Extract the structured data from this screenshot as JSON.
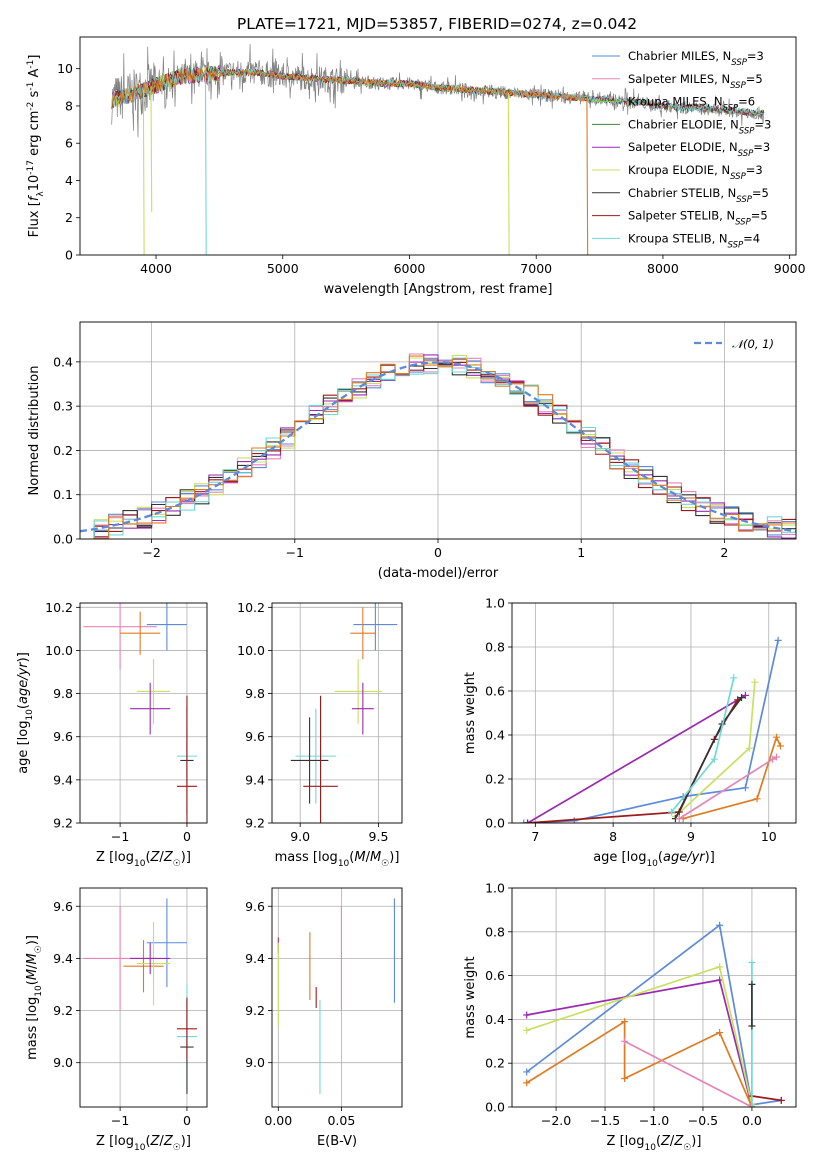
{
  "title": "PLATE=1721, MJD=53857, FIBERID=0274, z=0.042",
  "colors": {
    "chabrier_miles": "#5b8bd9",
    "salpeter_miles": "#e784b6",
    "kroupa_miles": "#88cc44",
    "chabrier_elodie": "#3a8a3a",
    "salpeter_elodie": "#9a2bb0",
    "kroupa_elodie": "#c8e060",
    "chabrier_stelib": "#333333",
    "salpeter_stelib": "#9e1a1a",
    "kroupa_stelib": "#70d8d8",
    "orange": "#e07b22",
    "data": "#808080",
    "normal": "#5b8bd9"
  },
  "chart_data": [
    {
      "id": "spectrum",
      "type": "line",
      "xlabel": "wavelength [Angstrom, rest frame]",
      "ylabel": "Flux [f_λ10^{-17} erg cm^{-2} s^{-1} A^{-1}]",
      "xlim": [
        3400,
        9050
      ],
      "ylim": [
        0,
        11.7
      ],
      "xticks": [
        4000,
        5000,
        6000,
        7000,
        8000,
        9000
      ],
      "yticks": [
        0,
        2,
        4,
        6,
        8,
        10
      ],
      "x_tick_labels": [
        "4000",
        "5000",
        "6000",
        "7000",
        "8000",
        "9000"
      ],
      "y_tick_labels": [
        "0",
        "2",
        "4",
        "6",
        "8",
        "10"
      ],
      "legend": [
        {
          "base": "Chabrier MILES, N",
          "sub": "SSP",
          "tail": "=3",
          "color_key": "chabrier_miles"
        },
        {
          "base": "Salpeter MILES, N",
          "sub": "SSP",
          "tail": "=5",
          "color_key": "salpeter_miles"
        },
        {
          "base": "Kroupa MILES, N",
          "sub": "SSP",
          "tail": "=6",
          "color_key": "kroupa_miles"
        },
        {
          "base": "Chabrier ELODIE, N",
          "sub": "SSP",
          "tail": "=3",
          "color_key": "chabrier_elodie"
        },
        {
          "base": "Salpeter ELODIE, N",
          "sub": "SSP",
          "tail": "=3",
          "color_key": "salpeter_elodie"
        },
        {
          "base": "Kroupa ELODIE, N",
          "sub": "SSP",
          "tail": "=3",
          "color_key": "kroupa_elodie"
        },
        {
          "base": "Chabrier STELIB, N",
          "sub": "SSP",
          "tail": "=5",
          "color_key": "chabrier_stelib"
        },
        {
          "base": "Salpeter STELIB, N",
          "sub": "SSP",
          "tail": "=5",
          "color_key": "salpeter_stelib"
        },
        {
          "base": "Kroupa STELIB, N",
          "sub": "SSP",
          "tail": "=4",
          "color_key": "kroupa_stelib"
        }
      ],
      "continuum": {
        "x": [
          3650,
          3800,
          4000,
          4200,
          4400,
          4600,
          4800,
          5000,
          5200,
          5400,
          5600,
          5800,
          6000,
          6200,
          6400,
          6600,
          6800,
          7000,
          7200,
          7400,
          7600,
          7800,
          8000,
          8200,
          8400,
          8600,
          8800
        ],
        "y": [
          8.3,
          8.6,
          9.1,
          9.6,
          9.7,
          9.8,
          9.8,
          9.6,
          9.5,
          9.4,
          9.3,
          9.2,
          9.2,
          9.0,
          8.9,
          8.8,
          8.7,
          8.6,
          8.5,
          8.4,
          8.3,
          8.2,
          8.0,
          7.9,
          7.8,
          7.7,
          7.6
        ]
      },
      "model_dips": [
        {
          "x": 3900,
          "y": 0,
          "color_key": "kroupa_elodie"
        },
        {
          "x": 3960,
          "y": 2.3,
          "color_key": "kroupa_elodie"
        },
        {
          "x": 4390,
          "y": 0,
          "color_key": "kroupa_stelib"
        },
        {
          "x": 6780,
          "y": 0,
          "color_key": "kroupa_elodie"
        },
        {
          "x": 7400,
          "y": 0,
          "color_key": "orange"
        }
      ]
    },
    {
      "id": "residual_histogram",
      "type": "histogram",
      "xlabel": "(data-model)/error",
      "ylabel": "Normed distribution",
      "xlim": [
        -2.5,
        2.5
      ],
      "ylim": [
        0,
        0.49
      ],
      "xticks": [
        -2,
        -1,
        0,
        1,
        2
      ],
      "yticks": [
        0,
        0.1,
        0.2,
        0.3,
        0.4
      ],
      "x_tick_labels": [
        "−2",
        "−1",
        "0",
        "1",
        "2"
      ],
      "y_tick_labels": [
        "0.0",
        "0.1",
        "0.2",
        "0.3",
        "0.4"
      ],
      "legend_label": "𝒩(0, 1)",
      "bin_width": 0.1,
      "series_color_keys": [
        "chabrier_miles",
        "salpeter_miles",
        "kroupa_elodie",
        "salpeter_elodie",
        "chabrier_stelib",
        "salpeter_stelib",
        "kroupa_stelib",
        "orange"
      ]
    },
    {
      "id": "age_vs_Z",
      "type": "errorbar",
      "xlabel": "Z [log10(Z/Z☉)]",
      "ylabel": "age [log10(age/yr)]",
      "xlim": [
        -1.6,
        0.3
      ],
      "ylim": [
        9.2,
        10.22
      ],
      "xticks": [
        -1,
        0
      ],
      "yticks": [
        9.2,
        9.4,
        9.6,
        9.8,
        10.0,
        10.2
      ],
      "x_tick_labels": [
        "−1",
        "0"
      ],
      "y_tick_labels": [
        "9.2",
        "9.4",
        "9.6",
        "9.8",
        "10.0",
        "10.2"
      ],
      "points": [
        {
          "x": -0.3,
          "xerr": 0.3,
          "y": 10.12,
          "yerr": 0.12,
          "color_key": "chabrier_miles"
        },
        {
          "x": -1.0,
          "xerr": 0.55,
          "y": 10.11,
          "yerr": 0.2,
          "color_key": "salpeter_miles"
        },
        {
          "x": -0.7,
          "xerr": 0.3,
          "y": 10.08,
          "yerr": 0.1,
          "color_key": "orange"
        },
        {
          "x": -0.5,
          "xerr": 0.25,
          "y": 9.81,
          "yerr": 0.15,
          "color_key": "kroupa_elodie"
        },
        {
          "x": -0.55,
          "xerr": 0.3,
          "y": 9.73,
          "yerr": 0.12,
          "color_key": "salpeter_elodie"
        },
        {
          "x": 0.0,
          "xerr": 0.15,
          "y": 9.51,
          "yerr": 0.12,
          "color_key": "kroupa_stelib"
        },
        {
          "x": 0.0,
          "xerr": 0.1,
          "y": 9.49,
          "yerr": 0.25,
          "color_key": "chabrier_stelib"
        },
        {
          "x": 0.0,
          "xerr": 0.15,
          "y": 9.37,
          "yerr": 0.42,
          "color_key": "salpeter_stelib"
        }
      ]
    },
    {
      "id": "age_vs_mass",
      "type": "errorbar",
      "xlabel": "mass [log10(M/M☉)]",
      "ylabel": "",
      "xlim": [
        8.82,
        9.65
      ],
      "ylim": [
        9.2,
        10.22
      ],
      "xticks": [
        9.0,
        9.5
      ],
      "yticks": [
        9.2,
        9.4,
        9.6,
        9.8,
        10.0,
        10.2
      ],
      "x_tick_labels": [
        "9.0",
        "9.5"
      ],
      "y_tick_labels": [
        "9.2",
        "9.4",
        "9.6",
        "9.8",
        "10.0",
        "10.2"
      ],
      "points": [
        {
          "x": 9.48,
          "xerr": 0.14,
          "y": 10.12,
          "yerr": 0.12,
          "color_key": "chabrier_miles"
        },
        {
          "x": 9.4,
          "xerr": 0.08,
          "y": 10.08,
          "yerr": 0.12,
          "color_key": "orange"
        },
        {
          "x": 9.37,
          "xerr": 0.15,
          "y": 9.81,
          "yerr": 0.15,
          "color_key": "kroupa_elodie"
        },
        {
          "x": 9.4,
          "xerr": 0.07,
          "y": 9.73,
          "yerr": 0.12,
          "color_key": "salpeter_elodie"
        },
        {
          "x": 9.1,
          "xerr": 0.13,
          "y": 9.51,
          "yerr": 0.22,
          "color_key": "kroupa_stelib"
        },
        {
          "x": 9.06,
          "xerr": 0.12,
          "y": 9.49,
          "yerr": 0.2,
          "color_key": "chabrier_stelib"
        },
        {
          "x": 9.13,
          "xerr": 0.11,
          "y": 9.37,
          "yerr": 0.42,
          "color_key": "salpeter_stelib"
        }
      ]
    },
    {
      "id": "weight_vs_age",
      "type": "line",
      "xlabel": "age [log10(age/yr)]",
      "ylabel": "mass weight",
      "xlim": [
        6.7,
        10.35
      ],
      "ylim": [
        0,
        1.0
      ],
      "xticks": [
        7,
        8,
        9,
        10
      ],
      "yticks": [
        0,
        0.2,
        0.4,
        0.6,
        0.8,
        1.0
      ],
      "x_tick_labels": [
        "7",
        "8",
        "9",
        "10"
      ],
      "y_tick_labels": [
        "0.0",
        "0.2",
        "0.4",
        "0.6",
        "0.8",
        "1.0"
      ],
      "series": [
        {
          "color_key": "chabrier_miles",
          "x": [
            6.85,
            7.5,
            8.9,
            9.7,
            10.12
          ],
          "y": [
            0.0,
            0.01,
            0.12,
            0.16,
            0.83
          ]
        },
        {
          "color_key": "salpeter_elodie",
          "x": [
            6.9,
            9.7
          ],
          "y": [
            0.0,
            0.58
          ]
        },
        {
          "color_key": "kroupa_elodie",
          "x": [
            8.8,
            9.75,
            9.82
          ],
          "y": [
            0.03,
            0.34,
            0.64
          ]
        },
        {
          "color_key": "salpeter_stelib",
          "x": [
            6.9,
            8.85,
            9.3,
            9.6
          ],
          "y": [
            0.0,
            0.05,
            0.38,
            0.56
          ]
        },
        {
          "color_key": "chabrier_stelib",
          "x": [
            8.8,
            9.4,
            9.65
          ],
          "y": [
            0.02,
            0.45,
            0.57
          ]
        },
        {
          "color_key": "kroupa_stelib",
          "x": [
            8.75,
            9.3,
            9.55
          ],
          "y": [
            0.05,
            0.29,
            0.66
          ]
        },
        {
          "color_key": "orange",
          "x": [
            8.9,
            9.85,
            10.1,
            10.15
          ],
          "y": [
            0.02,
            0.11,
            0.39,
            0.35
          ]
        },
        {
          "color_key": "salpeter_miles",
          "x": [
            8.85,
            10.05,
            10.1
          ],
          "y": [
            0.02,
            0.29,
            0.3
          ]
        }
      ]
    },
    {
      "id": "mass_vs_Z",
      "type": "errorbar",
      "xlabel": "Z [log10(Z/Z☉)]",
      "ylabel": "mass [log10(M/M☉)]",
      "xlim": [
        -1.6,
        0.3
      ],
      "ylim": [
        8.83,
        9.67
      ],
      "xticks": [
        -1,
        0
      ],
      "yticks": [
        9.0,
        9.2,
        9.4,
        9.6
      ],
      "x_tick_labels": [
        "−1",
        "0"
      ],
      "y_tick_labels": [
        "9.0",
        "9.2",
        "9.4",
        "9.6"
      ],
      "points": [
        {
          "x": -0.3,
          "xerr": 0.3,
          "y": 9.46,
          "yerr": 0.17,
          "color_key": "chabrier_miles"
        },
        {
          "x": -1.0,
          "xerr": 0.55,
          "y": 9.4,
          "yerr": 0.2,
          "color_key": "salpeter_miles"
        },
        {
          "x": -0.65,
          "xerr": 0.3,
          "y": 9.37,
          "yerr": 0.1,
          "color_key": "orange"
        },
        {
          "x": -0.5,
          "xerr": 0.25,
          "y": 9.38,
          "yerr": 0.16,
          "color_key": "kroupa_elodie"
        },
        {
          "x": -0.55,
          "xerr": 0.3,
          "y": 9.4,
          "yerr": 0.06,
          "color_key": "salpeter_elodie"
        },
        {
          "x": 0.0,
          "xerr": 0.15,
          "y": 9.1,
          "yerr": 0.2,
          "color_key": "kroupa_stelib"
        },
        {
          "x": 0.0,
          "xerr": 0.1,
          "y": 9.06,
          "yerr": 0.18,
          "color_key": "chabrier_stelib"
        },
        {
          "x": 0.0,
          "xerr": 0.15,
          "y": 9.13,
          "yerr": 0.12,
          "color_key": "salpeter_stelib"
        }
      ]
    },
    {
      "id": "mass_vs_EBV",
      "type": "errorbar",
      "xlabel": "E(B-V)",
      "ylabel": "",
      "xlim": [
        -0.005,
        0.098
      ],
      "ylim": [
        8.83,
        9.67
      ],
      "xticks": [
        0.0,
        0.05
      ],
      "yticks": [
        9.0,
        9.2,
        9.4,
        9.6
      ],
      "x_tick_labels": [
        "0.00",
        "0.05"
      ],
      "y_tick_labels": [
        "9.0",
        "9.2",
        "9.4",
        "9.6"
      ],
      "points": [
        {
          "x": 0.0,
          "xerr": 0.0,
          "y": 9.45,
          "yerr": 0.03,
          "color_key": "salpeter_elodie"
        },
        {
          "x": 0.0,
          "xerr": 0.0,
          "y": 9.3,
          "yerr": 0.16,
          "color_key": "kroupa_elodie"
        },
        {
          "x": 0.025,
          "xerr": 0.0,
          "y": 9.37,
          "yerr": 0.13,
          "color_key": "orange"
        },
        {
          "x": 0.03,
          "xerr": 0.0,
          "y": 9.25,
          "yerr": 0.04,
          "color_key": "salpeter_stelib"
        },
        {
          "x": 0.033,
          "xerr": 0.0,
          "y": 9.06,
          "yerr": 0.18,
          "color_key": "kroupa_stelib"
        },
        {
          "x": 0.05,
          "xerr": 0.0,
          "y": 9.4,
          "yerr": 0.2,
          "color_key": "salpeter_miles"
        },
        {
          "x": 0.092,
          "xerr": 0.0,
          "y": 9.43,
          "yerr": 0.2,
          "color_key": "chabrier_miles"
        }
      ]
    },
    {
      "id": "weight_vs_Z",
      "type": "line",
      "xlabel": "Z [log10(Z/Z☉)]",
      "ylabel": "mass weight",
      "xlim": [
        -2.45,
        0.45
      ],
      "ylim": [
        0,
        1.0
      ],
      "xticks": [
        -2.0,
        -1.5,
        -1.0,
        -0.5,
        0.0
      ],
      "yticks": [
        0,
        0.2,
        0.4,
        0.6,
        0.8,
        1.0
      ],
      "x_tick_labels": [
        "−2.0",
        "−1.5",
        "−1.0",
        "−0.5",
        "0.0"
      ],
      "y_tick_labels": [
        "0.0",
        "0.2",
        "0.4",
        "0.6",
        "0.8",
        "1.0"
      ],
      "series": [
        {
          "color_key": "chabrier_miles",
          "x": [
            -2.3,
            -0.33,
            0.0,
            0.3
          ],
          "y": [
            0.16,
            0.83,
            0.01,
            0.03
          ]
        },
        {
          "color_key": "salpeter_elodie",
          "x": [
            -2.3,
            -0.33,
            0.0
          ],
          "y": [
            0.42,
            0.58,
            0.0
          ]
        },
        {
          "color_key": "kroupa_elodie",
          "x": [
            -2.3,
            -0.33,
            0.0
          ],
          "y": [
            0.35,
            0.64,
            0.01
          ]
        },
        {
          "color_key": "orange",
          "x": [
            -2.3,
            -1.3,
            -1.3,
            -0.33,
            0.0
          ],
          "y": [
            0.11,
            0.39,
            0.13,
            0.34,
            0.0
          ]
        },
        {
          "color_key": "salpeter_miles",
          "x": [
            -1.3,
            0.0
          ],
          "y": [
            0.3,
            0.0
          ]
        },
        {
          "color_key": "salpeter_stelib",
          "x": [
            0.0,
            0.3
          ],
          "y": [
            0.05,
            0.03
          ]
        },
        {
          "color_key": "kroupa_stelib",
          "x": [
            0.0,
            0.0
          ],
          "y": [
            0.66,
            0.0
          ]
        },
        {
          "color_key": "chabrier_stelib",
          "x": [
            0.0,
            0.0
          ],
          "y": [
            0.56,
            0.37
          ]
        }
      ]
    }
  ]
}
